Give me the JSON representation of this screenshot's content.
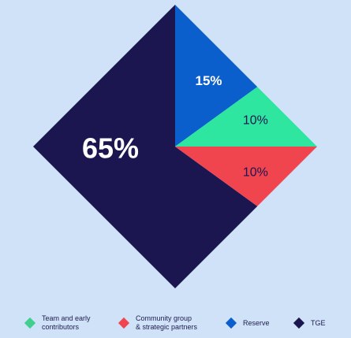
{
  "chart_data": {
    "type": "pie",
    "shape": "diamond",
    "slices": [
      {
        "name": "TGE",
        "value": 65,
        "label": "65%",
        "color": "#1b1650",
        "label_color": "#ffffff"
      },
      {
        "name": "Reserve",
        "value": 15,
        "label": "15%",
        "color": "#0b5fcc",
        "label_color": "#ffffff"
      },
      {
        "name": "Team and early contributors",
        "value": 10,
        "label": "10%",
        "color": "#2ee6a0",
        "label_color": "#1b1650"
      },
      {
        "name": "Community group & strategic partners",
        "value": 10,
        "label": "10%",
        "color": "#f0444f",
        "label_color": "#1b1650"
      }
    ]
  },
  "legend": {
    "items": [
      {
        "text": "Team and early\ncontributors",
        "color": "#3fcf8e"
      },
      {
        "text": "Community group\n& strategic partners",
        "color": "#f0444f"
      },
      {
        "text": "Reserve",
        "color": "#0b5fcc"
      },
      {
        "text": "TGE",
        "color": "#1b1650"
      }
    ]
  },
  "colors": {
    "background": "#cfe2f7"
  }
}
